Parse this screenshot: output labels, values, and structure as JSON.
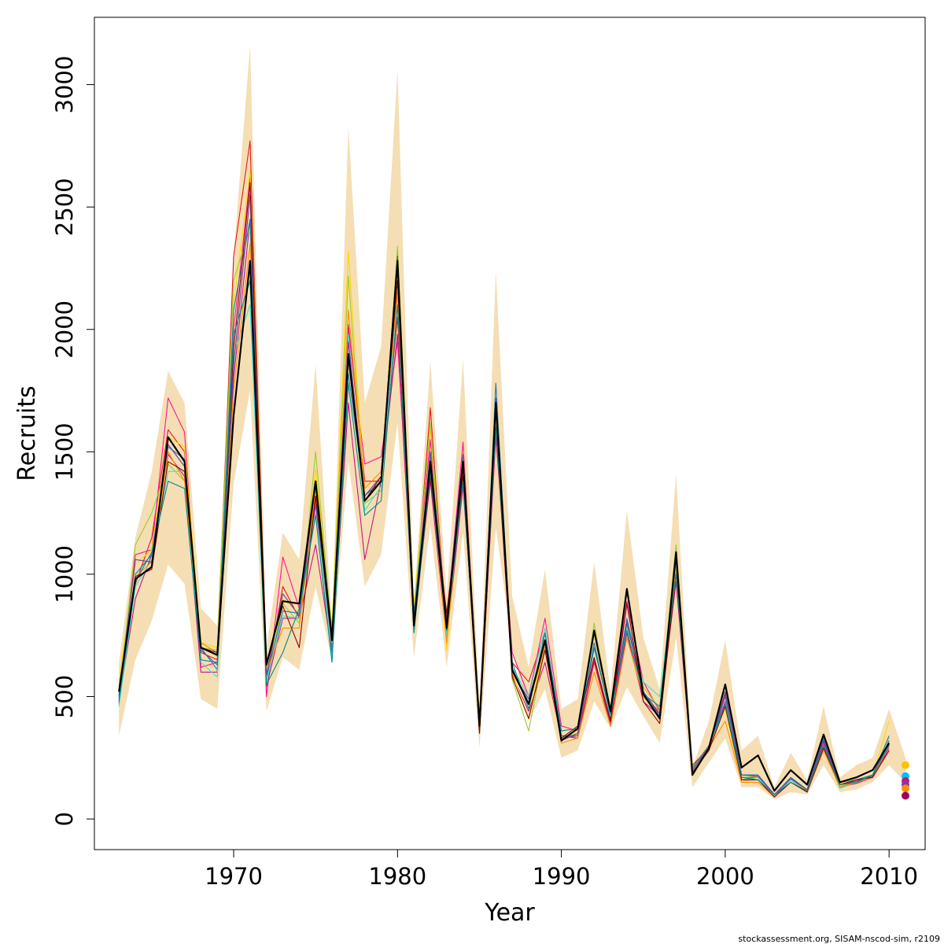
{
  "chart_data": {
    "type": "line",
    "xlabel": "Year",
    "ylabel": "Recruits",
    "xlim": [
      1961.5,
      2012.2
    ],
    "ylim": [
      -125,
      3275
    ],
    "x_ticks": [
      1970,
      1980,
      1990,
      2000,
      2010
    ],
    "y_ticks": [
      0,
      500,
      1000,
      1500,
      2000,
      2500,
      3000
    ],
    "grid": false,
    "legend": "none",
    "x": [
      1963,
      1964,
      1965,
      1966,
      1967,
      1968,
      1969,
      1970,
      1971,
      1972,
      1973,
      1974,
      1975,
      1976,
      1977,
      1978,
      1979,
      1980,
      1981,
      1982,
      1983,
      1984,
      1985,
      1986,
      1987,
      1988,
      1989,
      1990,
      1991,
      1992,
      1993,
      1994,
      1995,
      1996,
      1997,
      1998,
      1999,
      2000,
      2001,
      2002,
      2003,
      2004,
      2005,
      2006,
      2007,
      2008,
      2009,
      2010,
      2011
    ],
    "band": {
      "color": "#F5DEB3",
      "lower": [
        340,
        650,
        810,
        1040,
        960,
        490,
        450,
        1370,
        1750,
        440,
        660,
        610,
        950,
        650,
        1460,
        950,
        1080,
        1620,
        660,
        1200,
        620,
        1170,
        290,
        1190,
        700,
        400,
        530,
        250,
        280,
        480,
        370,
        540,
        420,
        310,
        740,
        130,
        230,
        330,
        130,
        130,
        80,
        110,
        100,
        220,
        110,
        120,
        150,
        220,
        150
      ],
      "upper": [
        640,
        1150,
        1420,
        1830,
        1700,
        860,
        790,
        2300,
        3160,
        700,
        1170,
        1060,
        1860,
        800,
        2830,
        1700,
        1930,
        3060,
        880,
        1870,
        910,
        1880,
        450,
        2240,
        910,
        620,
        1020,
        450,
        490,
        1050,
        520,
        1260,
        740,
        530,
        1410,
        210,
        400,
        730,
        280,
        340,
        130,
        270,
        160,
        460,
        170,
        220,
        250,
        450,
        250
      ]
    },
    "series": [
      {
        "color": "#000000",
        "lw": 2.2,
        "values": [
          520,
          980,
          1030,
          1560,
          1460,
          700,
          670,
          1650,
          2280,
          630,
          890,
          880,
          1380,
          730,
          1900,
          1300,
          1380,
          2280,
          790,
          1460,
          780,
          1460,
          380,
          1700,
          610,
          470,
          730,
          320,
          370,
          770,
          440,
          940,
          510,
          410,
          1090,
          180,
          290,
          550,
          210,
          260,
          115,
          200,
          140,
          345,
          150,
          170,
          200,
          310,
          null
        ]
      },
      {
        "color": "#E41A1C",
        "lw": 1.1,
        "values": [
          470,
          960,
          1150,
          1590,
          1500,
          680,
          650,
          2300,
          2770,
          560,
          950,
          820,
          1320,
          760,
          2020,
          1380,
          1380,
          2050,
          820,
          1680,
          760,
          1420,
          380,
          1650,
          640,
          560,
          760,
          340,
          330,
          640,
          380,
          810,
          500,
          430,
          1050,
          220,
          290,
          510,
          170,
          170,
          95,
          165,
          120,
          320,
          135,
          150,
          180,
          305,
          null
        ]
      },
      {
        "color": "#FF1493",
        "lw": 1.1,
        "values": [
          490,
          1080,
          1100,
          1720,
          1580,
          620,
          640,
          2000,
          2620,
          500,
          1070,
          860,
          1280,
          740,
          2000,
          1450,
          1480,
          1950,
          850,
          1550,
          800,
          1540,
          380,
          1560,
          680,
          500,
          820,
          380,
          360,
          760,
          420,
          890,
          560,
          440,
          1010,
          200,
          300,
          480,
          160,
          160,
          90,
          160,
          120,
          310,
          140,
          150,
          170,
          290,
          null
        ]
      },
      {
        "color": "#C71585",
        "lw": 1.1,
        "values": [
          480,
          900,
          1080,
          1490,
          1400,
          600,
          600,
          1800,
          2450,
          540,
          820,
          820,
          1120,
          680,
          1700,
          1060,
          1380,
          1980,
          790,
          1380,
          730,
          1360,
          420,
          1720,
          590,
          440,
          640,
          330,
          340,
          650,
          390,
          760,
          480,
          420,
          970,
          190,
          280,
          470,
          160,
          170,
          100,
          150,
          115,
          300,
          130,
          145,
          170,
          280,
          null
        ]
      },
      {
        "color": "#FFD700",
        "lw": 1.1,
        "values": [
          560,
          1040,
          1100,
          1560,
          1520,
          720,
          700,
          2100,
          2650,
          620,
          900,
          840,
          1430,
          780,
          2320,
          1320,
          1400,
          2230,
          870,
          1600,
          690,
          1500,
          400,
          1680,
          600,
          410,
          720,
          330,
          360,
          760,
          420,
          800,
          540,
          450,
          1080,
          210,
          300,
          450,
          150,
          170,
          100,
          150,
          110,
          300,
          135,
          155,
          175,
          400,
          null
        ]
      },
      {
        "color": "#9ACD32",
        "lw": 1.1,
        "values": [
          500,
          1120,
          1250,
          1450,
          1380,
          700,
          690,
          2200,
          2420,
          570,
          880,
          800,
          1500,
          760,
          2220,
          1290,
          1340,
          2340,
          820,
          1620,
          760,
          1450,
          420,
          1650,
          570,
          360,
          700,
          330,
          350,
          800,
          430,
          790,
          540,
          450,
          1120,
          210,
          280,
          470,
          170,
          175,
          100,
          160,
          115,
          325,
          150,
          160,
          180,
          335,
          null
        ]
      },
      {
        "color": "#1F78B4",
        "lw": 1.1,
        "values": [
          510,
          1000,
          1080,
          1520,
          1470,
          700,
          610,
          2080,
          2450,
          580,
          850,
          840,
          1300,
          700,
          1820,
          1320,
          1380,
          2260,
          840,
          1480,
          800,
          1480,
          360,
          1780,
          610,
          470,
          720,
          340,
          340,
          720,
          410,
          820,
          520,
          420,
          1030,
          200,
          290,
          500,
          180,
          180,
          100,
          170,
          120,
          330,
          140,
          160,
          180,
          340,
          null
        ]
      },
      {
        "color": "#40E0D0",
        "lw": 1.1,
        "values": [
          460,
          950,
          1060,
          1420,
          1420,
          640,
          580,
          1900,
          2100,
          560,
          830,
          820,
          1250,
          650,
          1980,
          1260,
          1360,
          2150,
          760,
          1500,
          740,
          1420,
          360,
          1690,
          620,
          500,
          780,
          320,
          350,
          700,
          420,
          780,
          560,
          500,
          1040,
          200,
          280,
          470,
          160,
          170,
          95,
          160,
          110,
          290,
          125,
          150,
          170,
          310,
          null
        ]
      },
      {
        "color": "#FF8C00",
        "lw": 1.1,
        "values": [
          540,
          990,
          1050,
          1500,
          1380,
          720,
          680,
          1750,
          2350,
          600,
          780,
          780,
          1350,
          720,
          2080,
          1350,
          1420,
          2150,
          810,
          1450,
          720,
          1420,
          380,
          1620,
          600,
          470,
          700,
          310,
          330,
          600,
          380,
          740,
          500,
          440,
          1020,
          190,
          290,
          400,
          150,
          150,
          90,
          150,
          110,
          280,
          130,
          150,
          170,
          300,
          null
        ]
      },
      {
        "color": "#6A3D9A",
        "lw": 1.1,
        "values": [
          500,
          1060,
          1050,
          1530,
          1440,
          690,
          630,
          1850,
          2550,
          590,
          920,
          830,
          1370,
          760,
          1950,
          1320,
          1400,
          2300,
          780,
          1500,
          820,
          1490,
          390,
          1720,
          600,
          490,
          720,
          320,
          350,
          700,
          430,
          800,
          520,
          430,
          1060,
          200,
          290,
          520,
          180,
          175,
          100,
          165,
          120,
          320,
          140,
          155,
          175,
          320,
          null
        ]
      },
      {
        "color": "#8B0000",
        "lw": 1.1,
        "values": [
          520,
          990,
          1020,
          1460,
          1420,
          700,
          680,
          1920,
          2600,
          640,
          870,
          700,
          1320,
          740,
          1880,
          1300,
          1400,
          2200,
          800,
          1400,
          840,
          1400,
          350,
          1600,
          580,
          410,
          690,
          330,
          380,
          660,
          400,
          880,
          480,
          390,
          1000,
          190,
          280,
          460,
          160,
          160,
          90,
          150,
          110,
          290,
          140,
          160,
          170,
          280,
          null
        ]
      },
      {
        "color": "#008B8B",
        "lw": 1.1,
        "values": [
          480,
          970,
          1090,
          1380,
          1350,
          650,
          640,
          1980,
          2200,
          550,
          680,
          860,
          1240,
          640,
          1780,
          1240,
          1300,
          2100,
          760,
          1420,
          770,
          1380,
          390,
          1600,
          640,
          450,
          760,
          360,
          370,
          700,
          430,
          770,
          510,
          460,
          1000,
          210,
          300,
          470,
          170,
          160,
          100,
          150,
          115,
          300,
          140,
          150,
          180,
          300,
          null
        ]
      }
    ],
    "endpoints": [
      {
        "color": "#FFC000",
        "value": 220
      },
      {
        "color": "#00BFFF",
        "value": 175
      },
      {
        "color": "#C71585",
        "value": 155
      },
      {
        "color": "#7B3F9E",
        "value": 140
      },
      {
        "color": "#FF8C00",
        "value": 125
      },
      {
        "color": "#A0005A",
        "value": 95
      }
    ]
  },
  "credit": "stockassessment.org, SISAM-nscod-sim, r2109"
}
